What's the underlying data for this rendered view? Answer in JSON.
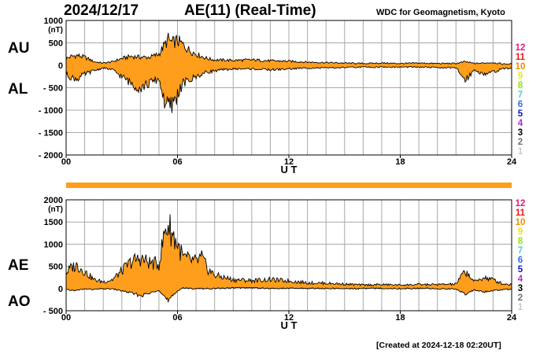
{
  "header": {
    "date": "2024/12/17",
    "title": "AE(11) (Real-Time)",
    "source": "WDC for Geomagnetism, Kyoto"
  },
  "labels": {
    "au": "AU",
    "al": "AL",
    "ae": "AE",
    "ao": "AO"
  },
  "footer": {
    "created": "[Created at 2024-12-18 02:20UT]"
  },
  "legend": {
    "items": [
      "12",
      "11",
      "10",
      "9",
      "8",
      "7",
      "6",
      "5",
      "4",
      "3",
      "2",
      "1"
    ],
    "colors": [
      "#e8177a",
      "#e8171c",
      "#f08c00",
      "#e8e800",
      "#90e800",
      "#3dd6d6",
      "#2a6fe8",
      "#1010c8",
      "#c41fd6",
      "#000000",
      "#707070",
      "#c8c8c8"
    ]
  },
  "colors": {
    "fill": "#ff9e1c",
    "line": "#000000",
    "grid": "#a8a8a8",
    "bar": "#ff9e1c"
  },
  "chart_data": [
    {
      "type": "area",
      "name": "AU/AL",
      "x_unit": "UT hours",
      "xlim": [
        0,
        24
      ],
      "xticks": [
        "00",
        "06",
        "12",
        "18",
        "24"
      ],
      "xlabel": "U T",
      "ylim": [
        -2000,
        1000
      ],
      "yunit": "(nT)",
      "yticks": [
        "1000",
        "500",
        "0",
        "- 500",
        "- 1000",
        "- 1500",
        "- 2000"
      ],
      "upper": {
        "name": "AU",
        "x": [
          0,
          0.3,
          0.6,
          1,
          1.5,
          2,
          2.5,
          3,
          3.5,
          4,
          4.5,
          5,
          5.3,
          5.5,
          5.7,
          6,
          6.3,
          6.6,
          7,
          7.3,
          7.6,
          8,
          9,
          10,
          11,
          12,
          13,
          14,
          15,
          16,
          17,
          18,
          19,
          20,
          21,
          21.5,
          22,
          22.5,
          23,
          23.5,
          24
        ],
        "values": [
          150,
          200,
          220,
          180,
          80,
          50,
          80,
          150,
          200,
          180,
          180,
          250,
          450,
          580,
          500,
          550,
          450,
          350,
          250,
          200,
          150,
          120,
          110,
          120,
          100,
          90,
          70,
          60,
          50,
          40,
          50,
          40,
          50,
          40,
          40,
          80,
          40,
          50,
          60,
          30,
          30
        ]
      },
      "lower": {
        "name": "AL",
        "x": [
          0,
          0.3,
          0.6,
          1,
          1.5,
          2,
          2.5,
          3,
          3.5,
          4,
          4.5,
          5,
          5.3,
          5.5,
          5.7,
          6,
          6.3,
          6.6,
          7,
          7.3,
          7.6,
          8,
          9,
          10,
          11,
          12,
          13,
          14,
          15,
          16,
          17,
          18,
          19,
          20,
          21,
          21.5,
          22,
          22.5,
          23,
          23.5,
          24
        ],
        "values": [
          -200,
          -280,
          -300,
          -200,
          -120,
          -60,
          -100,
          -250,
          -400,
          -500,
          -400,
          -300,
          -800,
          -950,
          -900,
          -650,
          -400,
          -350,
          -250,
          -200,
          -150,
          -120,
          -80,
          -80,
          -100,
          -80,
          -60,
          -60,
          -50,
          -40,
          -40,
          -40,
          -40,
          -50,
          -60,
          -320,
          -100,
          -200,
          -150,
          -80,
          -60
        ]
      }
    },
    {
      "type": "area",
      "name": "AE/AO",
      "x_unit": "UT hours",
      "xlim": [
        0,
        24
      ],
      "xticks": [
        "00",
        "06",
        "12",
        "18",
        "24"
      ],
      "xlabel": "U T",
      "ylim": [
        -500,
        2000
      ],
      "yunit": "(nT)",
      "yticks": [
        "2000",
        "1500",
        "1000",
        "500",
        "0",
        "- 500"
      ],
      "upper": {
        "name": "AE",
        "x": [
          0,
          0.3,
          0.6,
          1,
          1.5,
          2,
          2.5,
          3,
          3.5,
          4,
          4.5,
          5,
          5.3,
          5.5,
          5.7,
          6,
          6.3,
          6.6,
          7,
          7.3,
          7.6,
          8,
          9,
          10,
          11,
          12,
          13,
          14,
          15,
          16,
          17,
          18,
          19,
          20,
          21,
          21.5,
          22,
          22.5,
          23,
          23.5,
          24
        ],
        "values": [
          350,
          480,
          520,
          380,
          200,
          150,
          200,
          400,
          600,
          680,
          580,
          550,
          1250,
          1450,
          1250,
          1000,
          700,
          650,
          600,
          700,
          450,
          300,
          200,
          180,
          200,
          170,
          130,
          120,
          100,
          80,
          90,
          80,
          90,
          90,
          100,
          400,
          150,
          250,
          200,
          110,
          90
        ]
      },
      "lower": {
        "name": "AO",
        "x": [
          0,
          0.3,
          0.6,
          1,
          1.5,
          2,
          2.5,
          3,
          3.5,
          4,
          4.5,
          5,
          5.3,
          5.5,
          5.7,
          6,
          6.3,
          6.6,
          7,
          7.3,
          7.6,
          8,
          9,
          10,
          11,
          12,
          13,
          14,
          15,
          16,
          17,
          18,
          19,
          20,
          21,
          21.5,
          22,
          22.5,
          23,
          23.5,
          24
        ],
        "values": [
          -30,
          -40,
          -40,
          -10,
          -20,
          -5,
          -10,
          -50,
          -100,
          -160,
          -110,
          -30,
          -180,
          -300,
          -200,
          -50,
          20,
          0,
          0,
          0,
          0,
          0,
          15,
          20,
          0,
          5,
          5,
          0,
          0,
          0,
          5,
          0,
          5,
          -5,
          -10,
          -120,
          -30,
          -75,
          -45,
          -25,
          -15
        ]
      }
    }
  ]
}
